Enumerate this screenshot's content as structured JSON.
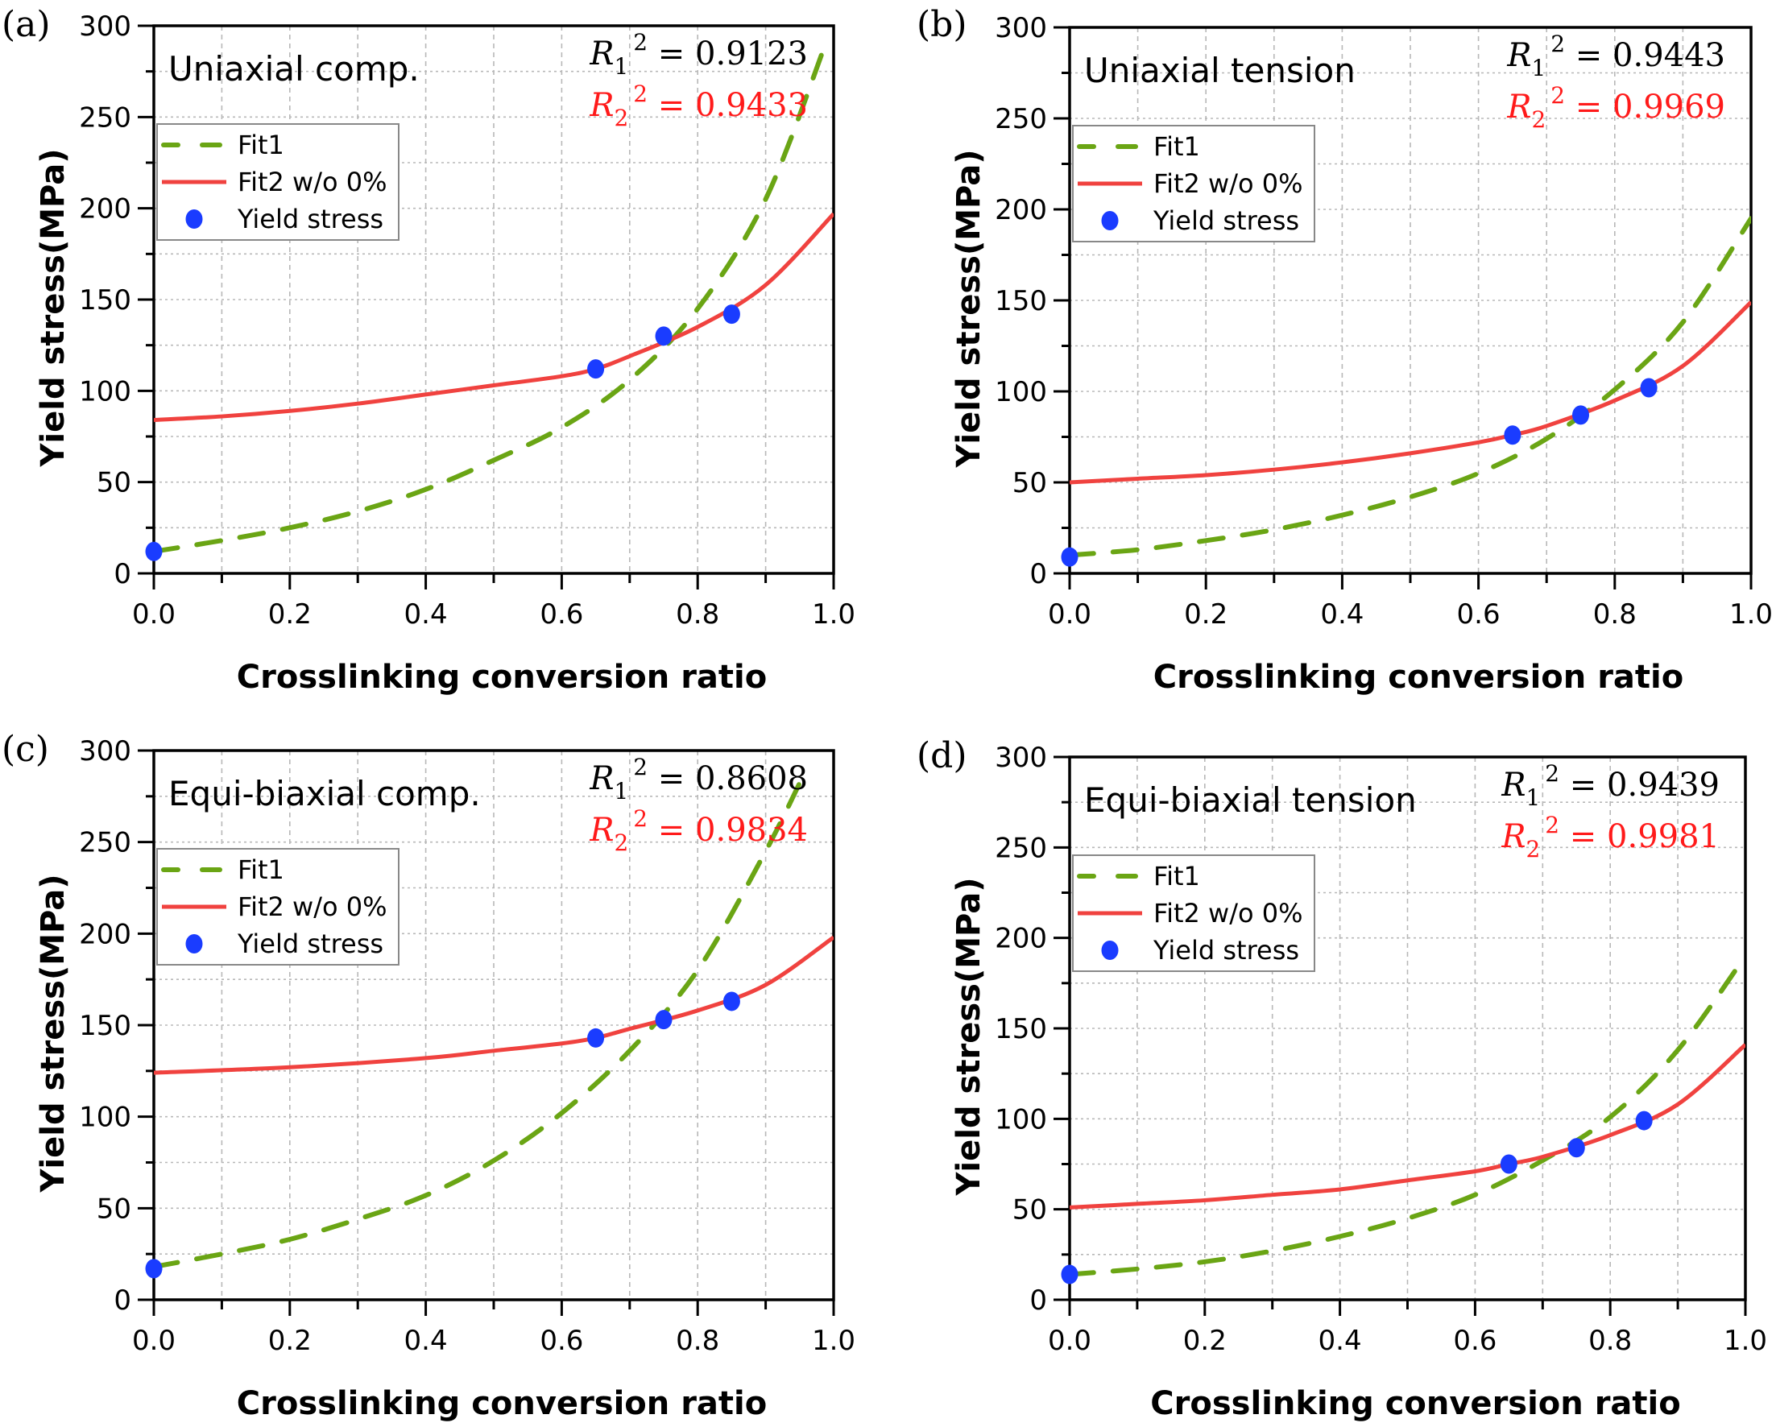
{
  "figure": {
    "x_ticks": [
      "0.0",
      "0.2",
      "0.4",
      "0.6",
      "0.8",
      "1.0"
    ],
    "y_ticks": [
      "0",
      "50",
      "100",
      "150",
      "200",
      "250",
      "300"
    ],
    "xlabel": "Crosslinking conversion ratio",
    "ylabel": "Yield stress(MPa)",
    "legend": {
      "fit1": "Fit1",
      "fit2": "Fit2 w/o 0%",
      "points": "Yield stress"
    },
    "colors": {
      "fit1": "#6aa514",
      "fit2": "#f0423f",
      "points": "#1a3cff",
      "r2_black": "#000000",
      "r2_red": "#ff1a1a"
    }
  },
  "chart_data": [
    {
      "type": "scatter",
      "panel": "(a)",
      "title": "Uniaxial comp.",
      "xlabel": "Crosslinking conversion ratio",
      "ylabel": "Yield stress(MPa)",
      "xlim": [
        0,
        1.0
      ],
      "ylim": [
        0,
        300
      ],
      "grid": true,
      "legend_position": "upper-left",
      "r2_1": {
        "label": "R1^2",
        "value": "0.9123"
      },
      "r2_2": {
        "label": "R2^2",
        "value": "0.9433"
      },
      "series": [
        {
          "name": "Fit1",
          "style": "dashed",
          "x": [
            0,
            0.1,
            0.2,
            0.3,
            0.4,
            0.5,
            0.6,
            0.7,
            0.8,
            0.9,
            0.99
          ],
          "y": [
            12,
            18,
            25,
            34,
            46,
            62,
            80,
            106,
            145,
            205,
            292
          ]
        },
        {
          "name": "Fit2 w/o 0%",
          "style": "solid",
          "x": [
            0,
            0.1,
            0.2,
            0.3,
            0.4,
            0.5,
            0.6,
            0.65,
            0.7,
            0.8,
            0.9,
            1.0
          ],
          "y": [
            84,
            86,
            89,
            93,
            98,
            103,
            108,
            112,
            119,
            135,
            158,
            197
          ]
        },
        {
          "name": "Yield stress",
          "style": "markers",
          "x": [
            0,
            0.65,
            0.75,
            0.85
          ],
          "y": [
            12,
            112,
            130,
            142
          ]
        }
      ]
    },
    {
      "type": "scatter",
      "panel": "(b)",
      "title": "Uniaxial tension",
      "xlabel": "Crosslinking conversion ratio",
      "ylabel": "Yield stress(MPa)",
      "xlim": [
        0,
        1.0
      ],
      "ylim": [
        0,
        300
      ],
      "grid": true,
      "legend_position": "upper-left",
      "r2_1": {
        "label": "R1^2",
        "value": "0.9443"
      },
      "r2_2": {
        "label": "R2^2",
        "value": "0.9969"
      },
      "series": [
        {
          "name": "Fit1",
          "style": "dashed",
          "x": [
            0,
            0.1,
            0.2,
            0.3,
            0.4,
            0.5,
            0.6,
            0.7,
            0.8,
            0.9,
            1.0
          ],
          "y": [
            10,
            13,
            18,
            24,
            32,
            42,
            55,
            74,
            101,
            138,
            195
          ]
        },
        {
          "name": "Fit2 w/o 0%",
          "style": "solid",
          "x": [
            0,
            0.1,
            0.2,
            0.3,
            0.4,
            0.5,
            0.6,
            0.65,
            0.7,
            0.8,
            0.9,
            1.0
          ],
          "y": [
            50,
            52,
            54,
            57,
            61,
            66,
            72,
            76,
            81,
            95,
            114,
            149
          ]
        },
        {
          "name": "Yield stress",
          "style": "markers",
          "x": [
            0,
            0.65,
            0.75,
            0.85
          ],
          "y": [
            9,
            76,
            87,
            102
          ]
        }
      ]
    },
    {
      "type": "scatter",
      "panel": "(c)",
      "title": "Equi-biaxial comp.",
      "xlabel": "Crosslinking conversion ratio",
      "ylabel": "Yield stress(MPa)",
      "xlim": [
        0,
        1.0
      ],
      "ylim": [
        0,
        300
      ],
      "grid": true,
      "legend_position": "upper-left",
      "r2_1": {
        "label": "R1^2",
        "value": "0.8608"
      },
      "r2_2": {
        "label": "R2^2",
        "value": "0.9834"
      },
      "series": [
        {
          "name": "Fit1",
          "style": "dashed",
          "x": [
            0,
            0.1,
            0.2,
            0.3,
            0.4,
            0.5,
            0.6,
            0.7,
            0.8,
            0.9,
            0.96
          ],
          "y": [
            18,
            25,
            33,
            44,
            57,
            76,
            102,
            136,
            180,
            245,
            290
          ]
        },
        {
          "name": "Fit2 w/o 0%",
          "style": "solid",
          "x": [
            0,
            0.2,
            0.4,
            0.5,
            0.6,
            0.65,
            0.7,
            0.8,
            0.9,
            1.0
          ],
          "y": [
            124,
            127,
            132,
            136,
            140,
            143,
            148,
            158,
            172,
            198
          ]
        },
        {
          "name": "Yield stress",
          "style": "markers",
          "x": [
            0,
            0.65,
            0.75,
            0.85
          ],
          "y": [
            17,
            143,
            153,
            163
          ]
        }
      ]
    },
    {
      "type": "scatter",
      "panel": "(d)",
      "title": "Equi-biaxial tension",
      "xlabel": "Crosslinking conversion ratio",
      "ylabel": "Yield stress(MPa)",
      "xlim": [
        0,
        1.0
      ],
      "ylim": [
        0,
        300
      ],
      "grid": true,
      "legend_position": "upper-left",
      "r2_1": {
        "label": "R1^2",
        "value": "0.9439"
      },
      "r2_2": {
        "label": "R2^2",
        "value": "0.9981"
      },
      "series": [
        {
          "name": "Fit1",
          "style": "dashed",
          "x": [
            0,
            0.1,
            0.2,
            0.3,
            0.4,
            0.5,
            0.6,
            0.7,
            0.8,
            0.9,
            1.0
          ],
          "y": [
            14,
            17,
            21,
            27,
            35,
            45,
            58,
            77,
            101,
            138,
            190
          ]
        },
        {
          "name": "Fit2 w/o 0%",
          "style": "solid",
          "x": [
            0,
            0.1,
            0.2,
            0.3,
            0.4,
            0.5,
            0.6,
            0.65,
            0.7,
            0.8,
            0.9,
            1.0
          ],
          "y": [
            51,
            53,
            55,
            58,
            61,
            66,
            71,
            75,
            79,
            91,
            108,
            141
          ]
        },
        {
          "name": "Yield stress",
          "style": "markers",
          "x": [
            0,
            0.65,
            0.75,
            0.85
          ],
          "y": [
            14,
            75,
            84,
            99
          ]
        }
      ]
    }
  ]
}
